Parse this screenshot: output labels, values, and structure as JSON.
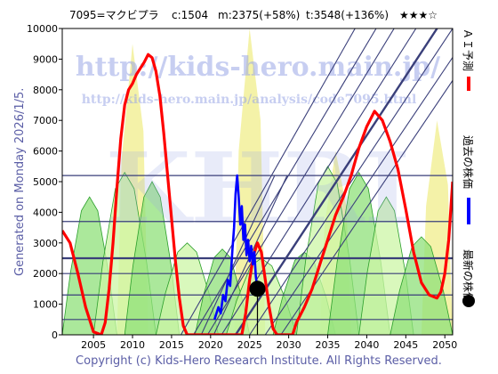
{
  "header": {
    "code_name": "7095=マクビプラ",
    "current": "c:1504",
    "m_value": "m:2375(+58%)",
    "t_value": "t:3548(+136%)",
    "rating": "★★★☆"
  },
  "watermark": {
    "url_main": "http://kids-hero.main.jp/",
    "url_sub": "http://kids-hero.main.jp/analysis/code7095.html",
    "logo": "KHRI"
  },
  "side_label": "Generated on Monday 2026/1/5.",
  "legend": {
    "ai_forecast": "ＡＩ予測",
    "past_price": "過去の株価",
    "latest_price": "最新の株価"
  },
  "footer": "Copyright (c) Kids-Hero Research Institute. All Rights Reserved.",
  "colors": {
    "ai_forecast": "#ff0000",
    "past_price": "#0000ff",
    "latest_price": "#000000",
    "bands_light": "#ccf5a6",
    "bands_mid": "#8fe07a",
    "bands_line": "#2a9e2a",
    "yellow": "#f4f2a8",
    "grid_lines": "#3a3f7a"
  },
  "chart_data": {
    "type": "line",
    "xlim": [
      2001,
      2051
    ],
    "ylim": [
      0,
      10000
    ],
    "x_ticks": [
      2005,
      2010,
      2015,
      2020,
      2025,
      2030,
      2035,
      2040,
      2045,
      2050
    ],
    "y_ticks": [
      0,
      1000,
      2000,
      3000,
      4000,
      5000,
      6000,
      7000,
      8000,
      9000,
      10000
    ],
    "horizontal_levels": [
      500,
      1300,
      2000,
      2500,
      3700,
      5200
    ],
    "latest_point": {
      "x": 2026.0,
      "y": 1504
    },
    "series": [
      {
        "name": "ＡＩ予測",
        "points": [
          [
            2001,
            3400
          ],
          [
            2002,
            3000
          ],
          [
            2003,
            2000
          ],
          [
            2004,
            900
          ],
          [
            2005,
            100
          ],
          [
            2006,
            0
          ],
          [
            2006.5,
            400
          ],
          [
            2007,
            1500
          ],
          [
            2007.5,
            3000
          ],
          [
            2008,
            4800
          ],
          [
            2008.5,
            6400
          ],
          [
            2009,
            7500
          ],
          [
            2009.5,
            8000
          ],
          [
            2010,
            8200
          ],
          [
            2010.5,
            8500
          ],
          [
            2011,
            8700
          ],
          [
            2011.5,
            8900
          ],
          [
            2012,
            9150
          ],
          [
            2012.5,
            9050
          ],
          [
            2013,
            8600
          ],
          [
            2013.5,
            7800
          ],
          [
            2014,
            6600
          ],
          [
            2014.5,
            5200
          ],
          [
            2015,
            3800
          ],
          [
            2015.5,
            2400
          ],
          [
            2016,
            1200
          ],
          [
            2016.5,
            300
          ],
          [
            2017,
            0
          ],
          [
            2024,
            0
          ],
          [
            2024.5,
            700
          ],
          [
            2025,
            1800
          ],
          [
            2025.5,
            2600
          ],
          [
            2026,
            3000
          ],
          [
            2026.5,
            2700
          ],
          [
            2027,
            1800
          ],
          [
            2027.5,
            900
          ],
          [
            2028,
            200
          ],
          [
            2028.5,
            0
          ],
          [
            2030.5,
            0
          ],
          [
            2031,
            400
          ],
          [
            2032,
            900
          ],
          [
            2033,
            1500
          ],
          [
            2034,
            2300
          ],
          [
            2035,
            3100
          ],
          [
            2036,
            3900
          ],
          [
            2037,
            4500
          ],
          [
            2038,
            5200
          ],
          [
            2039,
            6100
          ],
          [
            2040,
            6800
          ],
          [
            2041,
            7300
          ],
          [
            2042,
            7000
          ],
          [
            2043,
            6300
          ],
          [
            2044,
            5400
          ],
          [
            2045,
            4100
          ],
          [
            2046,
            2700
          ],
          [
            2047,
            1700
          ],
          [
            2048,
            1300
          ],
          [
            2049,
            1200
          ],
          [
            2049.5,
            1400
          ],
          [
            2050,
            2000
          ],
          [
            2050.5,
            3100
          ],
          [
            2051,
            5000
          ]
        ]
      },
      {
        "name": "過去の株価",
        "points": [
          [
            2020.5,
            500
          ],
          [
            2021,
            900
          ],
          [
            2021.3,
            700
          ],
          [
            2021.6,
            1300
          ],
          [
            2021.9,
            1100
          ],
          [
            2022.2,
            1800
          ],
          [
            2022.5,
            1600
          ],
          [
            2022.8,
            2800
          ],
          [
            2023,
            3500
          ],
          [
            2023.2,
            4600
          ],
          [
            2023.4,
            5200
          ],
          [
            2023.6,
            4500
          ],
          [
            2023.8,
            3600
          ],
          [
            2024,
            4200
          ],
          [
            2024.2,
            3100
          ],
          [
            2024.4,
            3600
          ],
          [
            2024.6,
            2600
          ],
          [
            2024.8,
            3100
          ],
          [
            2025,
            2400
          ],
          [
            2025.2,
            2900
          ],
          [
            2025.4,
            2300
          ],
          [
            2025.6,
            2700
          ],
          [
            2025.8,
            1900
          ],
          [
            2026,
            1504
          ]
        ]
      }
    ]
  }
}
